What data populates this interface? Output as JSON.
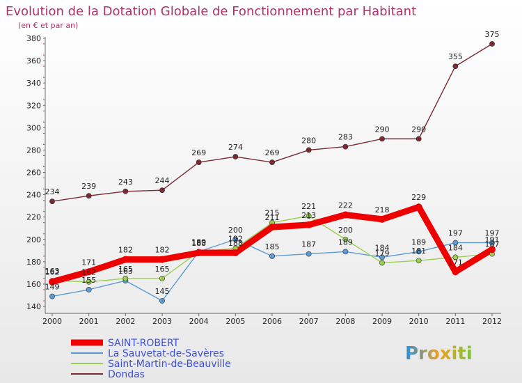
{
  "logo": {
    "text": "Proxiti"
  },
  "chart_data": {
    "type": "line",
    "title": "Evolution de la Dotation Globale de Fonctionnement par Habitant",
    "subtitle": "(en € et par an)",
    "xlabel": "",
    "ylabel": "",
    "x": [
      2000,
      2001,
      2002,
      2003,
      2004,
      2005,
      2006,
      2007,
      2008,
      2009,
      2010,
      2011,
      2012
    ],
    "ylim": [
      140,
      380
    ],
    "yticks": [
      140,
      160,
      180,
      200,
      220,
      240,
      260,
      280,
      300,
      320,
      340,
      360,
      380
    ],
    "grid": false,
    "legend_position": "bottom-left",
    "series": [
      {
        "name": "SAINT-ROBERT",
        "color": "#ee0000",
        "emphasis": true,
        "values": [
          162,
          171,
          182,
          182,
          188,
          188,
          211,
          213,
          222,
          218,
          229,
          171,
          191
        ]
      },
      {
        "name": "La Sauvetat-de-Savères",
        "color": "#5b9bd5",
        "values": [
          149,
          155,
          163,
          145,
          189,
          200,
          185,
          187,
          189,
          184,
          189,
          197,
          197
        ]
      },
      {
        "name": "Saint-Martin-de-Beauville",
        "color": "#9acd50",
        "values": [
          163,
          162,
          165,
          165,
          189,
          192,
          215,
          221,
          200,
          179,
          181,
          184,
          187
        ]
      },
      {
        "name": "Dondas",
        "color": "#7a2a33",
        "values": [
          234,
          239,
          243,
          244,
          269,
          274,
          269,
          280,
          283,
          290,
          290,
          355,
          375
        ]
      }
    ]
  }
}
